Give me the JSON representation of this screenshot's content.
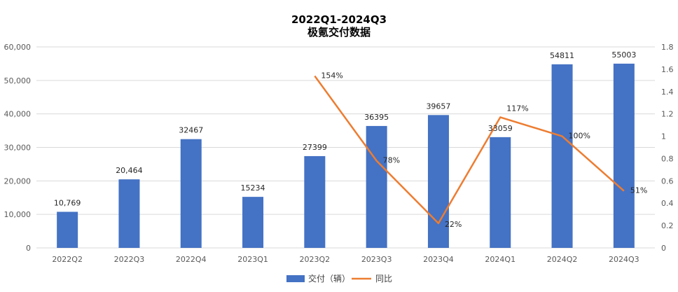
{
  "chart_data": {
    "type": "bar",
    "title": [
      "2022Q1-2024Q3",
      "极氪交付数据"
    ],
    "categories": [
      "2022Q2",
      "2022Q3",
      "2022Q4",
      "2023Q1",
      "2023Q2",
      "2023Q3",
      "2023Q4",
      "2024Q1",
      "2024Q2",
      "2024Q3"
    ],
    "series": [
      {
        "name": "交付（辆）",
        "type": "bar",
        "axis": "left",
        "color": "#4472c4",
        "values": [
          10769,
          20464,
          32467,
          15234,
          27399,
          36395,
          39657,
          33059,
          54811,
          55003
        ],
        "labels": [
          "10,769",
          "20,464",
          "32467",
          "15234",
          "27399",
          "36395",
          "39657",
          "33059",
          "54811",
          "55003"
        ]
      },
      {
        "name": "同比",
        "type": "line",
        "axis": "right",
        "color": "#ed7d31",
        "values": [
          null,
          null,
          null,
          null,
          1.54,
          0.78,
          0.22,
          1.17,
          1.0,
          0.51
        ],
        "labels": [
          "",
          "",
          "",
          "",
          "154%",
          "78%",
          "22%",
          "117%",
          "100%",
          "51%"
        ]
      }
    ],
    "y_left": {
      "range": [
        0,
        60000
      ],
      "ticks": [
        "0",
        "10,000",
        "20,000",
        "30,000",
        "40,000",
        "50,000",
        "60,000"
      ]
    },
    "y_right": {
      "range": [
        0,
        1.8
      ],
      "ticks": [
        "0",
        "0.2",
        "0.4",
        "0.6",
        "0.8",
        "1",
        "1.2",
        "1.4",
        "1.6",
        "1.8"
      ]
    },
    "grid": true,
    "legend_position": "bottom"
  }
}
